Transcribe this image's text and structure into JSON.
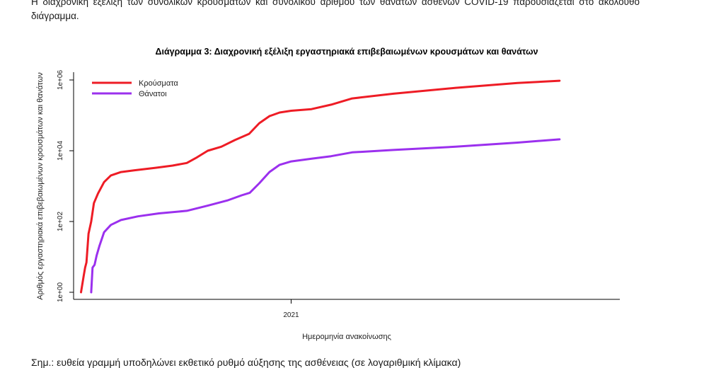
{
  "intro_text": "Η διαχρονική εξέλιξη των συνολικών κρουσμάτων και συνολικού αριθμού των θανάτων ασθενών COVID-19 παρουσιάζεται στο ακόλουθο διάγραμμα.",
  "note_text": "Σημ.: ευθεία γραμμή υποδηλώνει εκθετικό ρυθμό αύξησης της ασθένειας (σε λογαριθμική κλίμακα)",
  "colors": {
    "cases": "#ee1c25",
    "deaths": "#9b30ee"
  },
  "chart_data": {
    "type": "line",
    "title": "Διάγραμμα 3: Διαχρονική εξέλιξη εργαστηριακά επιβεβαιωμένων κρουσμάτων και θανάτων",
    "xlabel": "Ημερομηνία ανακοίνωσης",
    "ylabel": "Αριθμός εργαστηριακά επιβεβαιωμένων κρουσμάτων και θανάτων",
    "y_scale": "log",
    "ylim": [
      1,
      1000000
    ],
    "yticks": [
      "1e+00",
      "1e+02",
      "1e+04",
      "1e+06"
    ],
    "xlim": [
      "2020-02-15",
      "2022-05-01"
    ],
    "xticks": [
      {
        "label": "2021",
        "date": "2021-01-01"
      }
    ],
    "grid": false,
    "legend_position": "top-left",
    "series": [
      {
        "name": "Κρούσματα",
        "points": [
          [
            "2020-02-26",
            1
          ],
          [
            "2020-03-01",
            3
          ],
          [
            "2020-03-03",
            5
          ],
          [
            "2020-03-05",
            7
          ],
          [
            "2020-03-08",
            45
          ],
          [
            "2020-03-12",
            100
          ],
          [
            "2020-03-16",
            330
          ],
          [
            "2020-03-22",
            620
          ],
          [
            "2020-03-31",
            1300
          ],
          [
            "2020-04-10",
            2000
          ],
          [
            "2020-04-25",
            2500
          ],
          [
            "2020-05-15",
            2800
          ],
          [
            "2020-06-15",
            3300
          ],
          [
            "2020-07-10",
            3800
          ],
          [
            "2020-07-31",
            4500
          ],
          [
            "2020-08-15",
            6500
          ],
          [
            "2020-08-31",
            10000
          ],
          [
            "2020-09-20",
            13000
          ],
          [
            "2020-10-10",
            20000
          ],
          [
            "2020-10-31",
            30000
          ],
          [
            "2020-11-15",
            60000
          ],
          [
            "2020-11-30",
            95000
          ],
          [
            "2020-12-15",
            120000
          ],
          [
            "2021-01-01",
            135000
          ],
          [
            "2021-01-31",
            150000
          ],
          [
            "2021-03-01",
            200000
          ],
          [
            "2021-04-01",
            300000
          ],
          [
            "2021-06-01",
            410000
          ],
          [
            "2021-09-01",
            600000
          ],
          [
            "2021-12-01",
            820000
          ],
          [
            "2022-02-01",
            950000
          ]
        ]
      },
      {
        "name": "Θάνατοι",
        "points": [
          [
            "2020-03-12",
            1
          ],
          [
            "2020-03-14",
            5
          ],
          [
            "2020-03-17",
            6
          ],
          [
            "2020-03-20",
            11
          ],
          [
            "2020-03-24",
            20
          ],
          [
            "2020-03-31",
            50
          ],
          [
            "2020-04-10",
            80
          ],
          [
            "2020-04-25",
            110
          ],
          [
            "2020-05-20",
            140
          ],
          [
            "2020-06-20",
            170
          ],
          [
            "2020-07-31",
            200
          ],
          [
            "2020-08-31",
            280
          ],
          [
            "2020-09-30",
            400
          ],
          [
            "2020-10-20",
            550
          ],
          [
            "2020-11-01",
            650
          ],
          [
            "2020-11-15",
            1200
          ],
          [
            "2020-11-30",
            2500
          ],
          [
            "2020-12-15",
            4000
          ],
          [
            "2021-01-01",
            5000
          ],
          [
            "2021-02-01",
            6000
          ],
          [
            "2021-03-01",
            7000
          ],
          [
            "2021-04-01",
            9000
          ],
          [
            "2021-06-01",
            10500
          ],
          [
            "2021-09-01",
            13000
          ],
          [
            "2021-12-01",
            17000
          ],
          [
            "2022-02-01",
            21000
          ]
        ]
      }
    ]
  }
}
